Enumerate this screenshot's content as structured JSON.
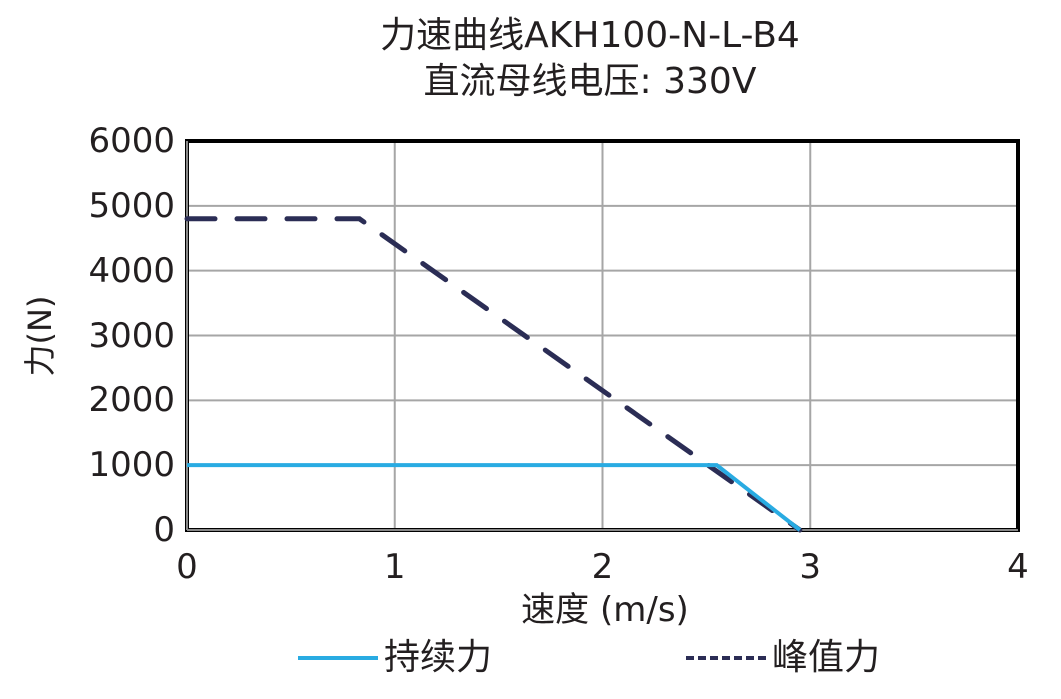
{
  "title": {
    "line1": "力速曲线AKH100-N-L-B4",
    "line2": "直流母线电压: 330V"
  },
  "axes": {
    "xlabel": "速度 (m/s)",
    "ylabel": "力(N)",
    "xticks": [
      "0",
      "1",
      "2",
      "3",
      "4"
    ],
    "yticks": [
      "6000",
      "5000",
      "4000",
      "3000",
      "2000",
      "1000",
      "0"
    ]
  },
  "legend": {
    "continuous": "持续力",
    "peak": "峰值力"
  },
  "colors": {
    "continuous": "#29abe2",
    "peak": "#2b2d55",
    "grid": "#a6a6a6",
    "frame": "#000000"
  },
  "chart_data": {
    "type": "line",
    "title": "力速曲线AKH100-N-L-B4 直流母线电压: 330V",
    "xlabel": "速度 (m/s)",
    "ylabel": "力(N)",
    "xlim": [
      0,
      4
    ],
    "ylim": [
      0,
      6000
    ],
    "xticks": [
      0,
      1,
      2,
      3,
      4
    ],
    "yticks": [
      0,
      1000,
      2000,
      3000,
      4000,
      5000,
      6000
    ],
    "grid": true,
    "legend_position": "bottom",
    "series": [
      {
        "name": "持续力",
        "style": "solid",
        "color": "#29abe2",
        "x": [
          0,
          2.55,
          2.95
        ],
        "y": [
          1000,
          1000,
          0
        ]
      },
      {
        "name": "峰值力",
        "style": "dashed",
        "color": "#2b2d55",
        "x": [
          0,
          0.83,
          2.95
        ],
        "y": [
          4800,
          4800,
          0
        ]
      }
    ]
  }
}
